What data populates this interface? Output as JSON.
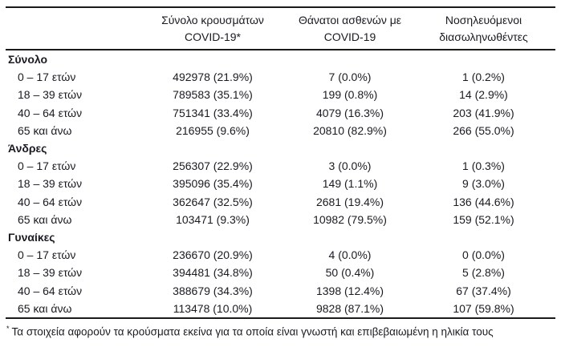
{
  "table": {
    "columns": [
      {
        "line1": "",
        "line2": ""
      },
      {
        "line1": "Σύνολο κρουσμάτων",
        "line2": "COVID-19*"
      },
      {
        "line1": "Θάνατοι ασθενών με",
        "line2": "COVID-19"
      },
      {
        "line1": "Νοσηλευόμενοι",
        "line2": "διασωληνωθέντες"
      }
    ],
    "sections": [
      {
        "label": "Σύνολο",
        "rows": [
          {
            "age": "0 – 17 ετών",
            "cases": "492978 (21.9%)",
            "deaths": "7 (0.0%)",
            "intubated": "1 (0.2%)"
          },
          {
            "age": "18 – 39 ετών",
            "cases": "789583 (35.1%)",
            "deaths": "199 (0.8%)",
            "intubated": "14 (2.9%)"
          },
          {
            "age": "40 – 64 ετών",
            "cases": "751341 (33.4%)",
            "deaths": "4079 (16.3%)",
            "intubated": "203 (41.9%)"
          },
          {
            "age": "65 και άνω",
            "cases": "216955 (9.6%)",
            "deaths": "20810 (82.9%)",
            "intubated": "266 (55.0%)"
          }
        ]
      },
      {
        "label": "Άνδρες",
        "rows": [
          {
            "age": "0 – 17 ετών",
            "cases": "256307 (22.9%)",
            "deaths": "3 (0.0%)",
            "intubated": "1 (0.3%)"
          },
          {
            "age": "18 – 39 ετών",
            "cases": "395096 (35.4%)",
            "deaths": "149 (1.1%)",
            "intubated": "9 (3.0%)"
          },
          {
            "age": "40 – 64 ετών",
            "cases": "362647 (32.5%)",
            "deaths": "2681 (19.4%)",
            "intubated": "136 (44.6%)"
          },
          {
            "age": "65 και άνω",
            "cases": "103471 (9.3%)",
            "deaths": "10982 (79.5%)",
            "intubated": "159 (52.1%)"
          }
        ]
      },
      {
        "label": "Γυναίκες",
        "rows": [
          {
            "age": "0 – 17 ετών",
            "cases": "236670 (20.9%)",
            "deaths": "4 (0.0%)",
            "intubated": "0 (0.0%)"
          },
          {
            "age": "18 – 39 ετών",
            "cases": "394481 (34.8%)",
            "deaths": "50 (0.4%)",
            "intubated": "5 (2.8%)"
          },
          {
            "age": "40 – 64 ετών",
            "cases": "388679 (34.3%)",
            "deaths": "1398 (12.4%)",
            "intubated": "67 (37.4%)"
          },
          {
            "age": "65 και άνω",
            "cases": "113478 (10.0%)",
            "deaths": "9828 (87.1%)",
            "intubated": "107 (59.8%)"
          }
        ]
      }
    ],
    "footnote": {
      "marker": "*",
      "text": "Τα στοιχεία αφορούν τα κρούσματα εκείνα για τα οποία είναι γνωστή και επιβεβαιωμένη η ηλικία τους"
    }
  },
  "colors": {
    "text": "#1a1a22",
    "rule": "#1a1a1a",
    "background": "#ffffff"
  }
}
